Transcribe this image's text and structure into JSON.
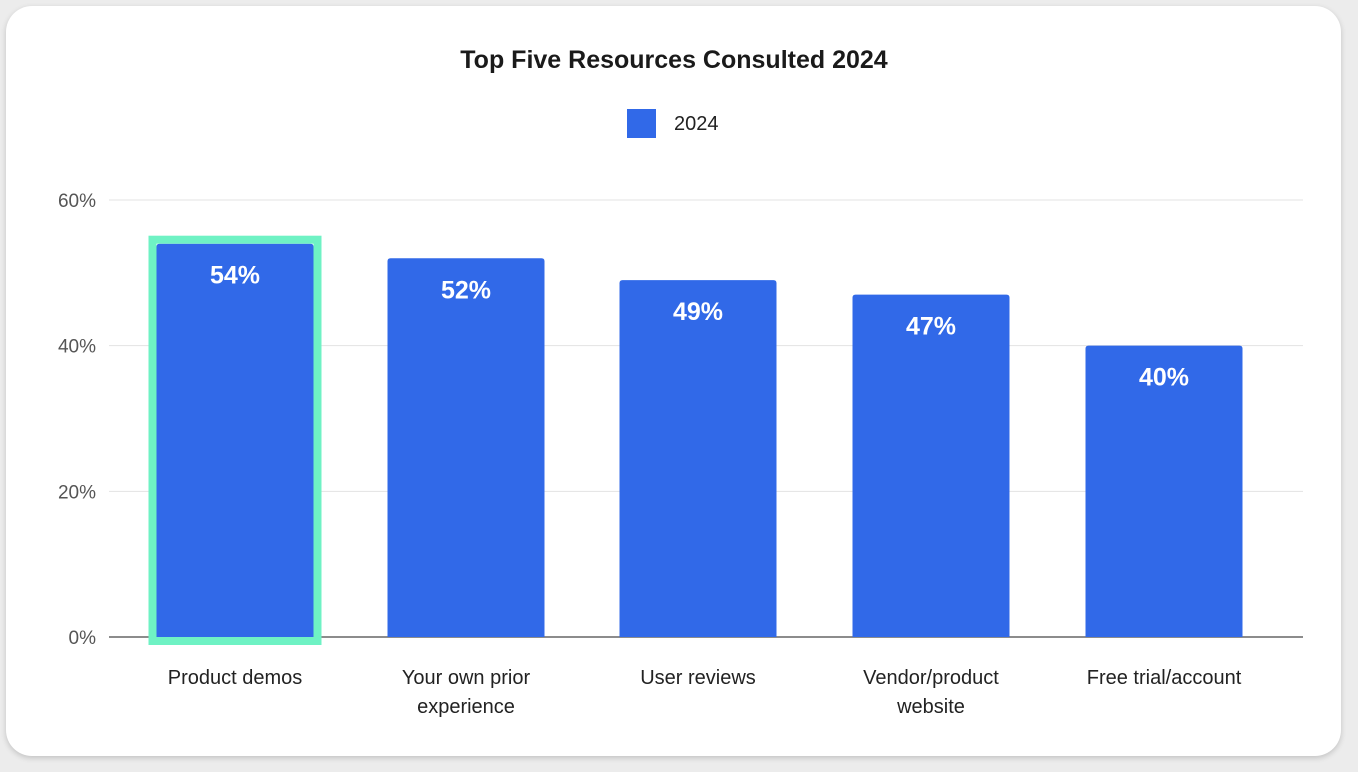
{
  "chart_data": {
    "type": "bar",
    "title": "Top Five Resources Consulted 2024",
    "categories": [
      [
        "Product demos"
      ],
      [
        "Your own prior",
        "experience"
      ],
      [
        "User reviews"
      ],
      [
        "Vendor/product",
        "website"
      ],
      [
        "Free trial/account"
      ]
    ],
    "series": [
      {
        "name": "2024",
        "values": [
          54,
          52,
          49,
          47,
          40
        ],
        "value_labels": [
          "54%",
          "52%",
          "49%",
          "47%",
          "40%"
        ],
        "color": "#3169e8"
      }
    ],
    "ylim": [
      0,
      60
    ],
    "yticks": [
      0,
      20,
      40,
      60
    ],
    "ytick_labels": [
      "0%",
      "20%",
      "40%",
      "60%"
    ],
    "grid": true,
    "legend": "top-center",
    "highlight": {
      "category_index": 0,
      "color": "#6ff2c4"
    }
  }
}
